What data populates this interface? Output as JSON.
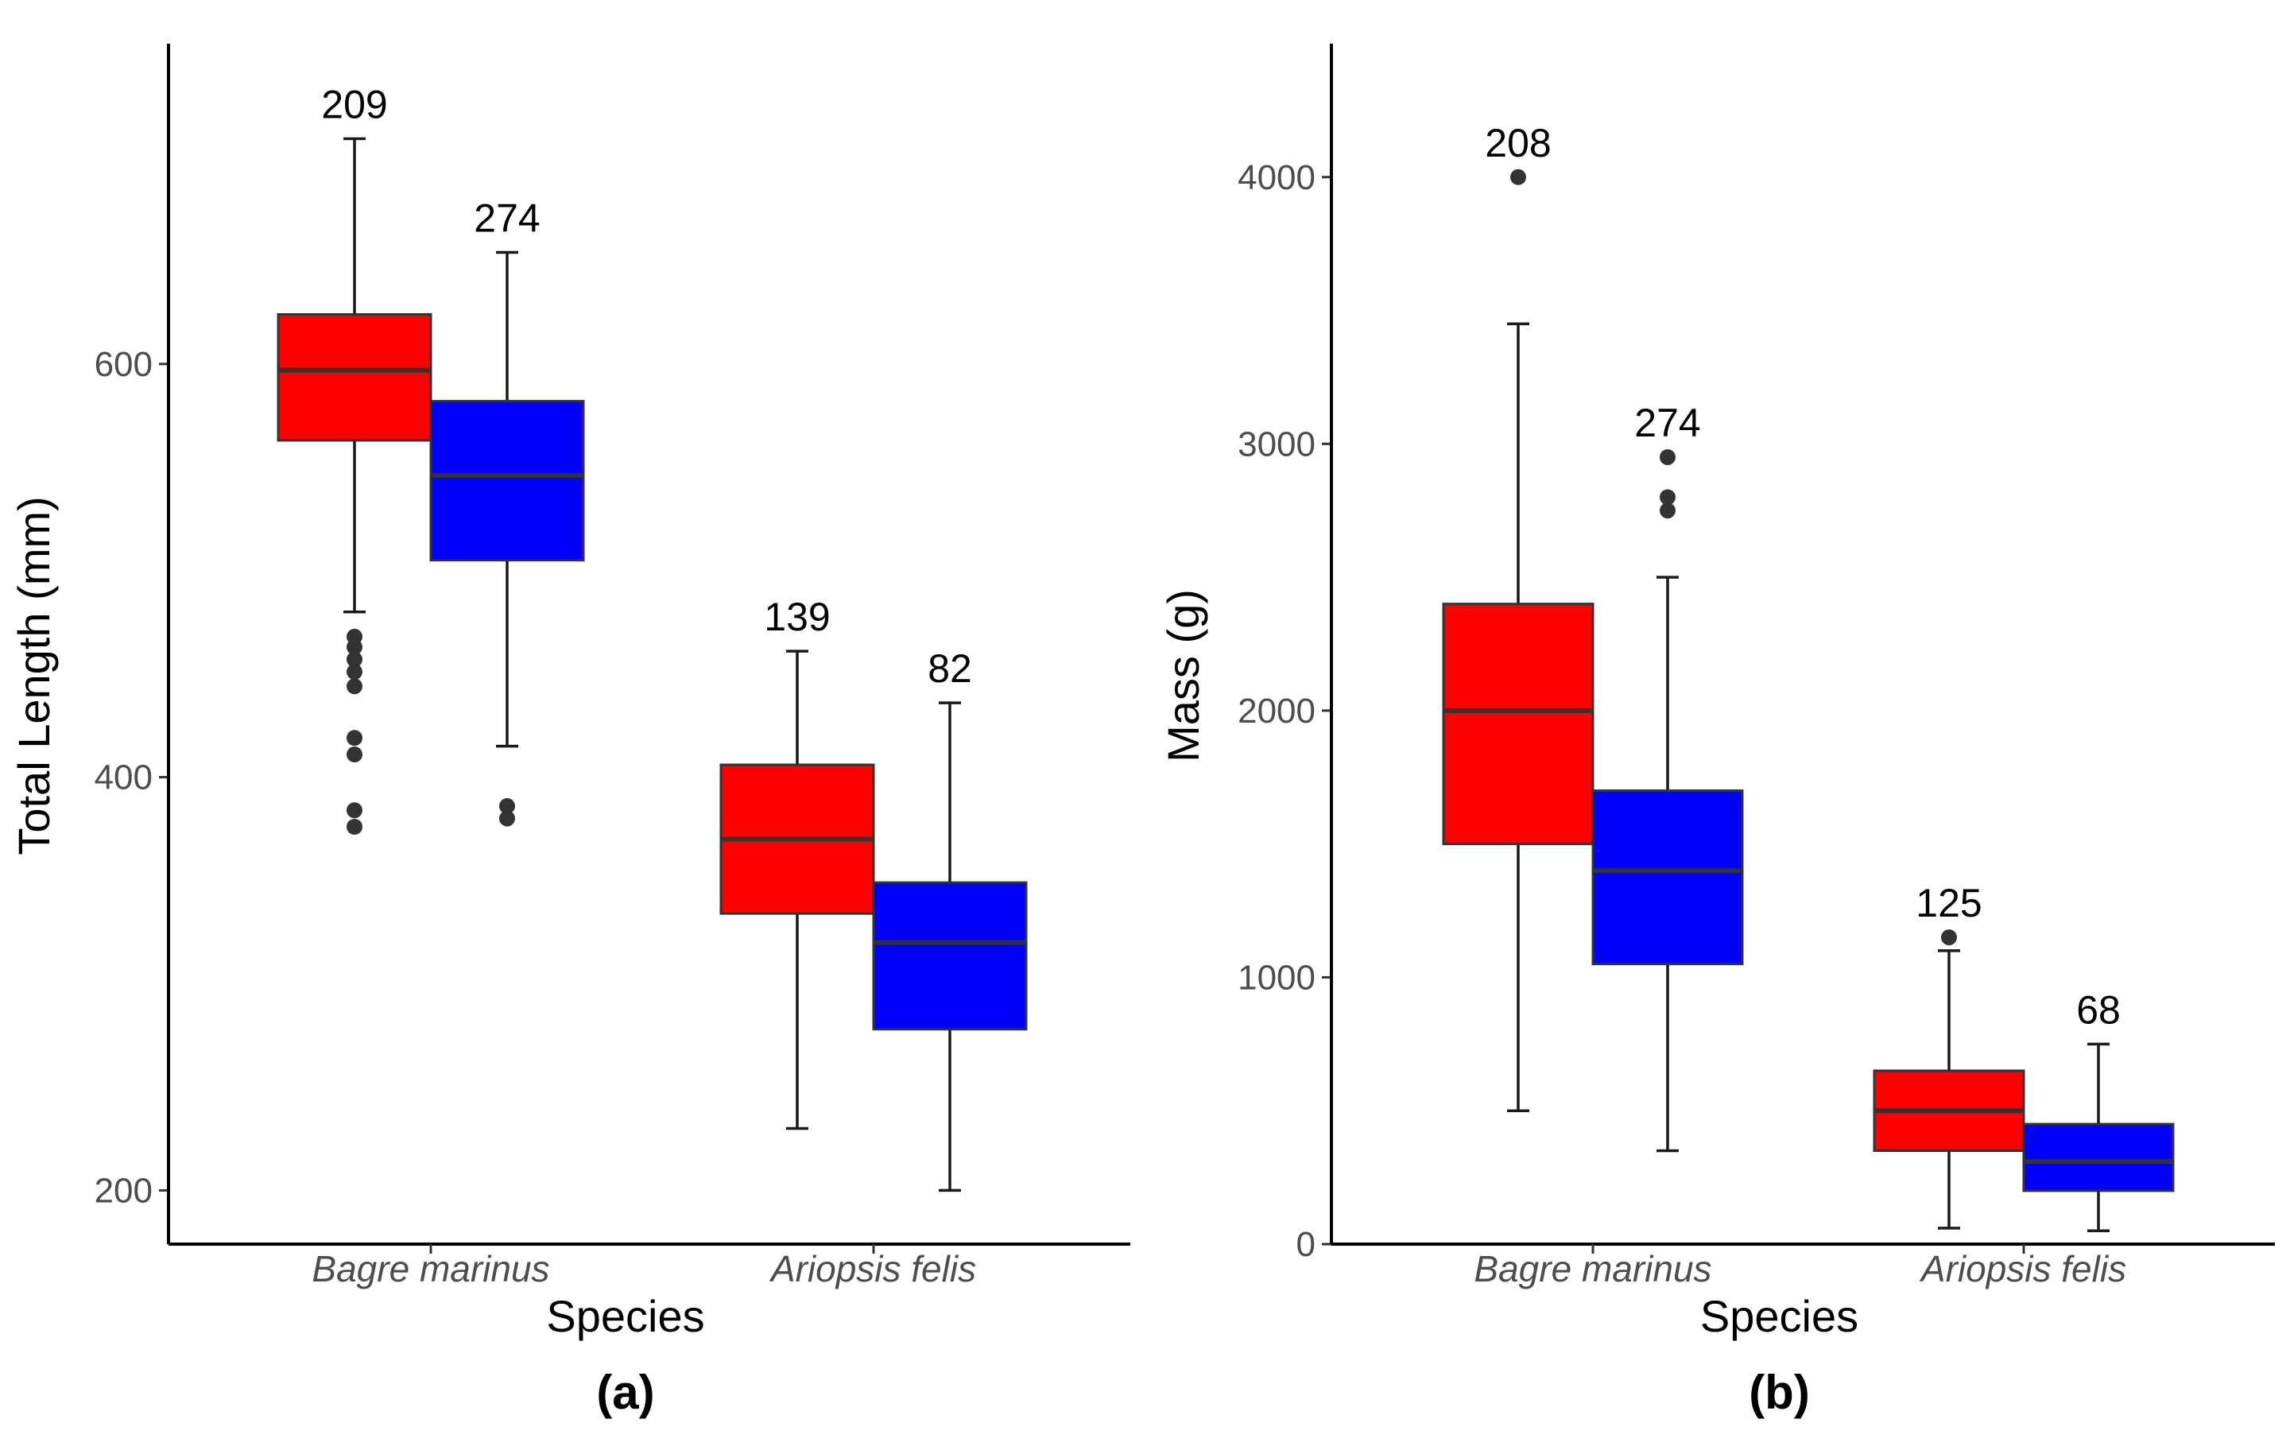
{
  "chart_data": [
    {
      "type": "box",
      "panel_label": "(a)",
      "xlabel": "Species",
      "ylabel": "Total Length (mm)",
      "ylim": [
        174,
        755
      ],
      "yticks": [
        200,
        400,
        600
      ],
      "categories": [
        "Bagre marinus",
        "Ariopsis felis"
      ],
      "boxes": [
        {
          "category": "Bagre marinus",
          "group": 1,
          "n": "209",
          "min": 480,
          "q1": 563,
          "median": 597,
          "q3": 624,
          "max": 709,
          "outliers": [
            376,
            384,
            411,
            419,
            444,
            451,
            457,
            463,
            468
          ]
        },
        {
          "category": "Bagre marinus",
          "group": 2,
          "n": "274",
          "min": 415,
          "q1": 505,
          "median": 546,
          "q3": 582,
          "max": 654,
          "outliers": [
            380,
            386
          ]
        },
        {
          "category": "Ariopsis felis",
          "group": 1,
          "n": "139",
          "min": 230,
          "q1": 334,
          "median": 370,
          "q3": 406,
          "max": 461,
          "outliers": []
        },
        {
          "category": "Ariopsis felis",
          "group": 2,
          "n": "82",
          "min": 200,
          "q1": 278,
          "median": 320,
          "q3": 349,
          "max": 436,
          "outliers": []
        }
      ]
    },
    {
      "type": "box",
      "panel_label": "(b)",
      "xlabel": "Species",
      "ylabel": "Mass (g)",
      "ylim": [
        0,
        4500
      ],
      "yticks": [
        0,
        1000,
        2000,
        3000,
        4000
      ],
      "categories": [
        "Bagre marinus",
        "Ariopsis felis"
      ],
      "boxes": [
        {
          "category": "Bagre marinus",
          "group": 1,
          "n": "208",
          "min": 500,
          "q1": 1500,
          "median": 2000,
          "q3": 2400,
          "max": 3450,
          "outliers": [
            4000
          ]
        },
        {
          "category": "Bagre marinus",
          "group": 2,
          "n": "274",
          "min": 350,
          "q1": 1050,
          "median": 1400,
          "q3": 1700,
          "max": 2500,
          "outliers": [
            2750,
            2800,
            2950
          ]
        },
        {
          "category": "Ariopsis felis",
          "group": 1,
          "n": "125",
          "min": 60,
          "q1": 350,
          "median": 500,
          "q3": 650,
          "max": 1100,
          "outliers": [
            1150
          ]
        },
        {
          "category": "Ariopsis felis",
          "group": 2,
          "n": "68",
          "min": 50,
          "q1": 200,
          "median": 310,
          "q3": 450,
          "max": 750,
          "outliers": []
        }
      ]
    }
  ],
  "colors": {
    "group1": "#ff0000",
    "group2": "#0000ff",
    "median": "#333333",
    "whisker": "#1a1a1a",
    "outlier": "#333333",
    "axis": "#000000"
  }
}
